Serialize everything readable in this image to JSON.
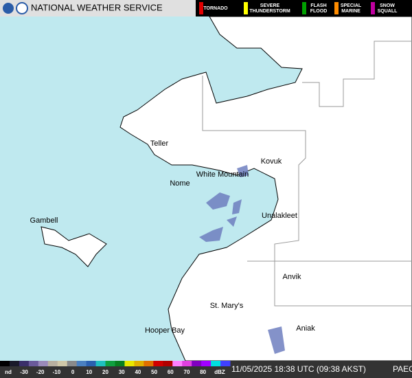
{
  "header": {
    "title": "NATIONAL WEATHER SERVICE",
    "warnings": [
      "TORNADO",
      "SEVERE THUNDERSTORM",
      "FLASH FLOOD",
      "SPECIAL MARINE",
      "SNOW SQUALL"
    ]
  },
  "places": [
    "Teller",
    "Kovuk",
    "White Mountain",
    "Nome",
    "Gambell",
    "Unalakleet",
    "Anvik",
    "St. Mary's",
    "Hooper Bay",
    "Aniak"
  ],
  "scale": {
    "nodata": "nd",
    "ticks": [
      "-30",
      "-20",
      "-10",
      "0",
      "10",
      "20",
      "30",
      "40",
      "50",
      "60",
      "70",
      "80"
    ],
    "unit": "dBZ"
  },
  "footer": {
    "time": "11/05/2025 18:38 UTC (09:38 AKST)",
    "station": "PAEC"
  }
}
